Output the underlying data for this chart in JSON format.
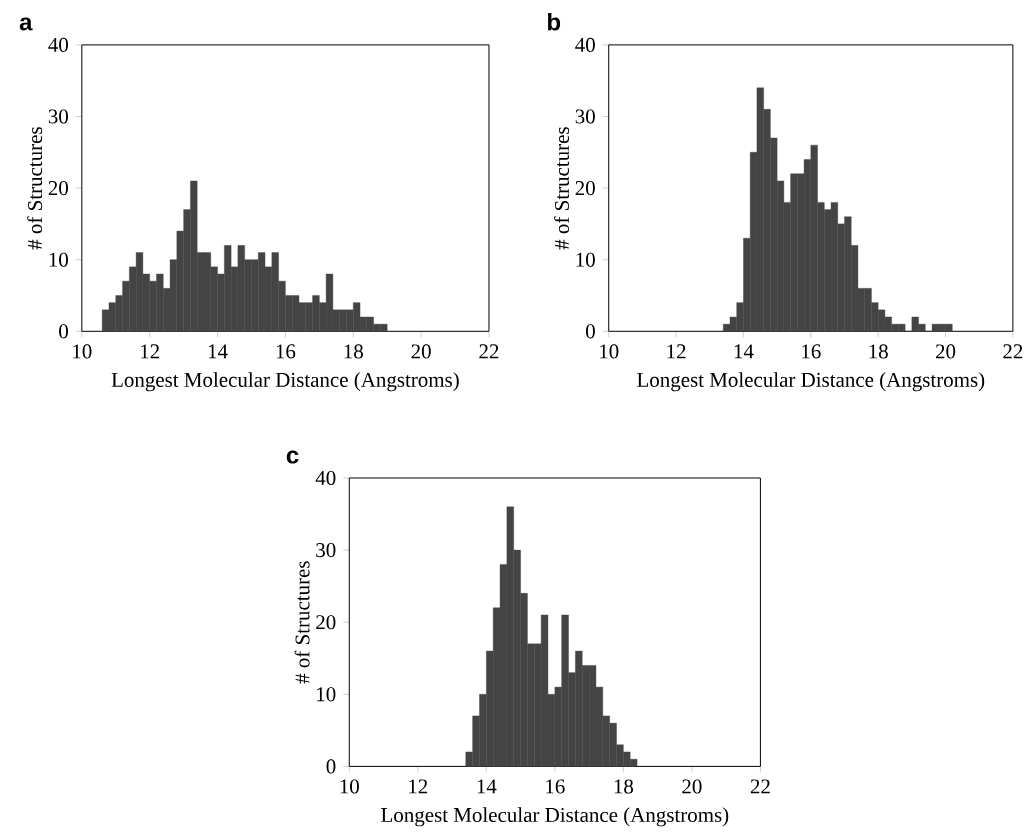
{
  "chart_data": [
    {
      "type": "histogram",
      "title": "a",
      "xlabel": "Longest Molecular Distance (Angstroms)",
      "ylabel": "# of Structures",
      "color": "#444444",
      "bins": [
        10.6,
        10.8,
        11.0,
        11.2,
        11.4,
        11.6,
        11.8,
        12.0,
        12.2,
        12.4,
        12.6,
        12.8,
        13.0,
        13.2,
        13.4,
        13.6,
        13.8,
        14.0,
        14.2,
        14.4,
        14.6,
        14.8,
        15.0,
        15.2,
        15.4,
        15.6,
        15.8,
        16.0,
        16.2,
        16.4,
        16.6,
        16.8,
        17.0,
        17.2,
        17.4,
        17.6,
        17.8,
        18.0,
        18.2,
        18.4,
        18.6,
        18.8,
        19.0
      ],
      "values": [
        3,
        4,
        5,
        7,
        9,
        11,
        8,
        7,
        8,
        6,
        10,
        14,
        17,
        21,
        11,
        11,
        9,
        8,
        12,
        9,
        12,
        10,
        10,
        11,
        9,
        11,
        7,
        5,
        5,
        4,
        4,
        5,
        4,
        8,
        3,
        3,
        3,
        4,
        2,
        2,
        1,
        1
      ],
      "xlim": [
        10,
        22
      ],
      "ylim": [
        0,
        40
      ],
      "xticks": [
        10,
        12,
        14,
        16,
        18,
        20,
        22
      ],
      "yticks": [
        0,
        10,
        20,
        30,
        40
      ]
    },
    {
      "type": "histogram",
      "title": "b",
      "xlabel": "Longest Molecular Distance (Angstroms)",
      "ylabel": "# of Structures",
      "color": "#444444",
      "bins": [
        13.4,
        13.6,
        13.8,
        14.0,
        14.2,
        14.4,
        14.6,
        14.8,
        15.0,
        15.2,
        15.4,
        15.6,
        15.8,
        16.0,
        16.2,
        16.4,
        16.6,
        16.8,
        17.0,
        17.2,
        17.4,
        17.6,
        17.8,
        18.0,
        18.2,
        18.4,
        18.6,
        18.8,
        19.0,
        19.2,
        19.4,
        19.6,
        19.8,
        20.0,
        20.2
      ],
      "values": [
        1,
        2,
        4,
        13,
        25,
        34,
        31,
        27,
        21,
        18,
        22,
        22,
        24,
        26,
        18,
        17,
        18,
        15,
        16,
        12,
        6,
        6,
        4,
        3,
        2,
        1,
        1,
        0,
        2,
        1,
        0,
        1,
        1,
        1
      ],
      "xlim": [
        10,
        22
      ],
      "ylim": [
        0,
        40
      ],
      "xticks": [
        10,
        12,
        14,
        16,
        18,
        20,
        22
      ],
      "yticks": [
        0,
        10,
        20,
        30,
        40
      ]
    },
    {
      "type": "histogram",
      "title": "c",
      "xlabel": "Longest Molecular Distance (Angstroms)",
      "ylabel": "# of Structures",
      "color": "#444444",
      "bins": [
        13.4,
        13.6,
        13.8,
        14.0,
        14.2,
        14.4,
        14.6,
        14.8,
        15.0,
        15.2,
        15.4,
        15.6,
        15.8,
        16.0,
        16.2,
        16.4,
        16.6,
        16.8,
        17.0,
        17.2,
        17.4,
        17.6,
        17.8,
        18.0,
        18.2,
        18.4
      ],
      "values": [
        2,
        7,
        10,
        16,
        22,
        28,
        36,
        30,
        24,
        17,
        17,
        21,
        10,
        11,
        21,
        13,
        16,
        14,
        14,
        11,
        7,
        6,
        3,
        2,
        1
      ],
      "xlim": [
        10,
        22
      ],
      "ylim": [
        0,
        40
      ],
      "xticks": [
        10,
        12,
        14,
        16,
        18,
        20,
        22
      ],
      "yticks": [
        0,
        10,
        20,
        30,
        40
      ]
    }
  ]
}
